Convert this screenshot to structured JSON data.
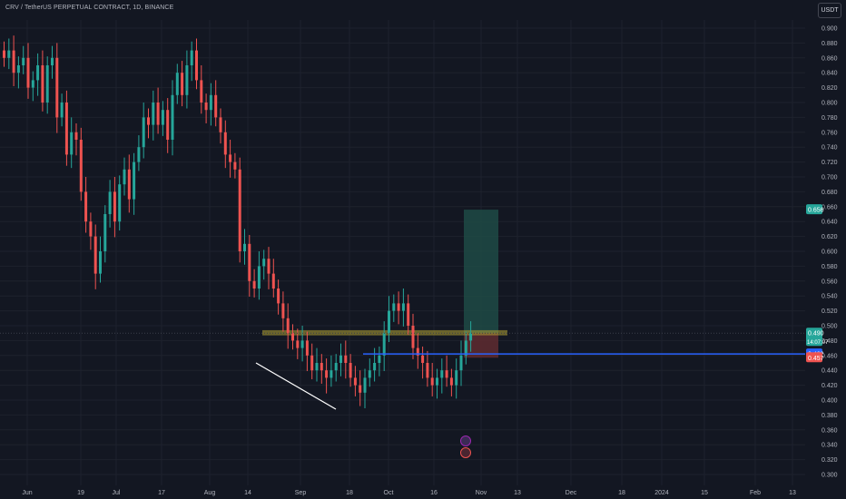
{
  "header": {
    "symbol_line": "CRV / TetherUS PERPETUAL CONTRACT, 1D, BINANCE",
    "currency": "USDT"
  },
  "colors": {
    "background": "#131722",
    "up": "#26a69a",
    "down": "#ef5350",
    "grid": "#1e222d",
    "resistance_zone": "#b5a435",
    "support_line": "#2962ff",
    "target_zone": "#1f4a45",
    "stop_zone": "#5b2a30",
    "trendline": "#ffffff"
  },
  "chart_data": {
    "type": "candlestick",
    "ylim": [
      0.29,
      0.91
    ],
    "y_ticks": [
      "0.900",
      "0.880",
      "0.860",
      "0.840",
      "0.820",
      "0.800",
      "0.780",
      "0.760",
      "0.740",
      "0.720",
      "0.700",
      "0.680",
      "0.660",
      "0.640",
      "0.620",
      "0.600",
      "0.580",
      "0.560",
      "0.540",
      "0.520",
      "0.500",
      "0.480",
      "0.460",
      "0.440",
      "0.420",
      "0.400",
      "0.380",
      "0.360",
      "0.340",
      "0.320",
      "0.300"
    ],
    "x_ticks": [
      "Jun",
      "19",
      "Jul",
      "17",
      "Aug",
      "14",
      "Sep",
      "18",
      "Oct",
      "16",
      "Nov",
      "13",
      "Dec",
      "18",
      "2024",
      "15",
      "Feb",
      "13"
    ],
    "price_badges": {
      "target": "0.656",
      "current": "0.490",
      "countdown": "14:07:07",
      "support": "0.462",
      "stop": "0.457"
    },
    "resistance_zone": [
      0.487,
      0.494
    ],
    "support_level": 0.462,
    "position": {
      "entry": 0.49,
      "target": 0.656,
      "stop": 0.457
    },
    "candles_close": [
      0.86,
      0.87,
      0.84,
      0.85,
      0.86,
      0.82,
      0.83,
      0.85,
      0.8,
      0.85,
      0.86,
      0.78,
      0.8,
      0.73,
      0.76,
      0.75,
      0.68,
      0.64,
      0.62,
      0.57,
      0.6,
      0.65,
      0.68,
      0.64,
      0.69,
      0.71,
      0.67,
      0.72,
      0.74,
      0.78,
      0.77,
      0.8,
      0.77,
      0.79,
      0.75,
      0.81,
      0.84,
      0.81,
      0.85,
      0.87,
      0.83,
      0.8,
      0.79,
      0.81,
      0.78,
      0.76,
      0.73,
      0.72,
      0.71,
      0.6,
      0.61,
      0.56,
      0.55,
      0.58,
      0.59,
      0.57,
      0.55,
      0.53,
      0.51,
      0.49,
      0.48,
      0.47,
      0.48,
      0.46,
      0.44,
      0.45,
      0.44,
      0.43,
      0.44,
      0.45,
      0.46,
      0.45,
      0.43,
      0.42,
      0.41,
      0.43,
      0.44,
      0.45,
      0.46,
      0.49,
      0.52,
      0.53,
      0.52,
      0.53,
      0.5,
      0.47,
      0.46,
      0.45,
      0.43,
      0.42,
      0.43,
      0.44,
      0.43,
      0.42,
      0.44,
      0.46,
      0.48,
      0.49
    ],
    "date_labels_note": ""
  }
}
